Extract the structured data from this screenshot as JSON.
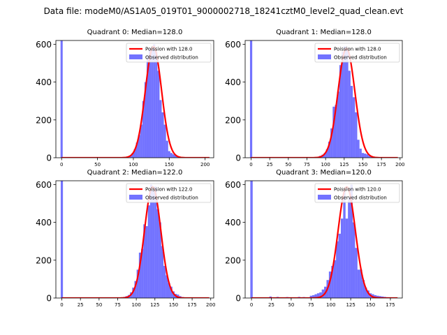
{
  "suptitle": "Data file: modeM0/AS1A05_019T01_9000002718_18241cztM0_level2_quad_clean.evt",
  "colors": {
    "hist": "#0000ff",
    "curve": "#ff0000",
    "axis": "#000000",
    "legend_edge": "#cccccc"
  },
  "chart_data": [
    {
      "type": "bar",
      "title": "Quadrant 0: Median=128.0",
      "xlim": [
        -8,
        212
      ],
      "ylim": [
        0,
        620
      ],
      "xticks": [
        0,
        50,
        100,
        150,
        200
      ],
      "yticks": [
        0,
        200,
        400,
        600
      ],
      "zero_bin_height": 620,
      "median": 128.0,
      "sigma": 11.3,
      "legend": [
        "Poission with 128.0",
        "Observed distribution"
      ],
      "hist_x": [
        96,
        99,
        102,
        105,
        108,
        111,
        114,
        117,
        120,
        123,
        126,
        129,
        132,
        135,
        138,
        141,
        144,
        147,
        150,
        153,
        156,
        159,
        162
      ],
      "hist_y": [
        12,
        25,
        45,
        80,
        120,
        175,
        300,
        400,
        540,
        575,
        580,
        600,
        560,
        460,
        305,
        240,
        175,
        90,
        35,
        25,
        18,
        12,
        5
      ]
    },
    {
      "type": "bar",
      "title": "Quadrant 1: Median=128.0",
      "xlim": [
        -8,
        203
      ],
      "ylim": [
        0,
        620
      ],
      "xticks": [
        0,
        25,
        50,
        75,
        100,
        125,
        150,
        175,
        200
      ],
      "yticks": [
        0,
        200,
        400,
        600
      ],
      "zero_bin_height": 620,
      "median": 128.0,
      "sigma": 11.3,
      "legend": [
        "Poission with 128.0",
        "Observed distribution"
      ],
      "hist_x": [
        93,
        96,
        99,
        102,
        105,
        108,
        111,
        114,
        117,
        120,
        123,
        126,
        129,
        132,
        135,
        138,
        141,
        144,
        147,
        150,
        153,
        156,
        159,
        162,
        165
      ],
      "hist_y": [
        10,
        16,
        25,
        45,
        85,
        155,
        270,
        280,
        350,
        490,
        560,
        590,
        580,
        460,
        380,
        320,
        240,
        95,
        48,
        25,
        22,
        18,
        10,
        6,
        3
      ]
    },
    {
      "type": "bar",
      "title": "Quadrant 2: Median=122.0",
      "xlim": [
        -8,
        204
      ],
      "ylim": [
        0,
        620
      ],
      "xticks": [
        0,
        25,
        50,
        75,
        100,
        125,
        150,
        175,
        200
      ],
      "yticks": [
        0,
        200,
        400,
        600
      ],
      "zero_bin_height": 620,
      "median": 122.0,
      "sigma": 11.0,
      "legend": [
        "Poission with 122.0",
        "Observed distribution"
      ],
      "hist_x": [
        84,
        87,
        90,
        93,
        96,
        99,
        102,
        105,
        108,
        111,
        114,
        117,
        120,
        123,
        126,
        129,
        132,
        135,
        138,
        141,
        144,
        147,
        150,
        153,
        156,
        159,
        162
      ],
      "hist_y": [
        6,
        10,
        16,
        30,
        55,
        90,
        150,
        240,
        260,
        390,
        380,
        490,
        600,
        570,
        590,
        470,
        400,
        275,
        170,
        120,
        80,
        60,
        35,
        22,
        18,
        10,
        5
      ]
    },
    {
      "type": "bar",
      "title": "Quadrant 3: Median=120.0",
      "xlim": [
        -8,
        190
      ],
      "ylim": [
        0,
        620
      ],
      "xticks": [
        0,
        25,
        50,
        75,
        100,
        125,
        150,
        175
      ],
      "yticks": [
        0,
        200,
        400,
        600
      ],
      "zero_bin_height": 620,
      "median": 120.0,
      "sigma": 10.9,
      "legend": [
        "Poission with 120.0",
        "Observed distribution"
      ],
      "hist_x": [
        24,
        33,
        45,
        60,
        66,
        75,
        78,
        81,
        84,
        87,
        90,
        93,
        96,
        99,
        102,
        105,
        108,
        111,
        114,
        117,
        120,
        123,
        126,
        129,
        132,
        135,
        138,
        141,
        144,
        147,
        150,
        153,
        156,
        159,
        162,
        165,
        168,
        171
      ],
      "hist_y": [
        8,
        6,
        5,
        6,
        5,
        12,
        15,
        20,
        25,
        30,
        45,
        60,
        95,
        140,
        170,
        200,
        300,
        340,
        420,
        570,
        420,
        530,
        600,
        400,
        265,
        150,
        150,
        95,
        55,
        40,
        25,
        20,
        15,
        12,
        10,
        8,
        6,
        4
      ]
    }
  ]
}
